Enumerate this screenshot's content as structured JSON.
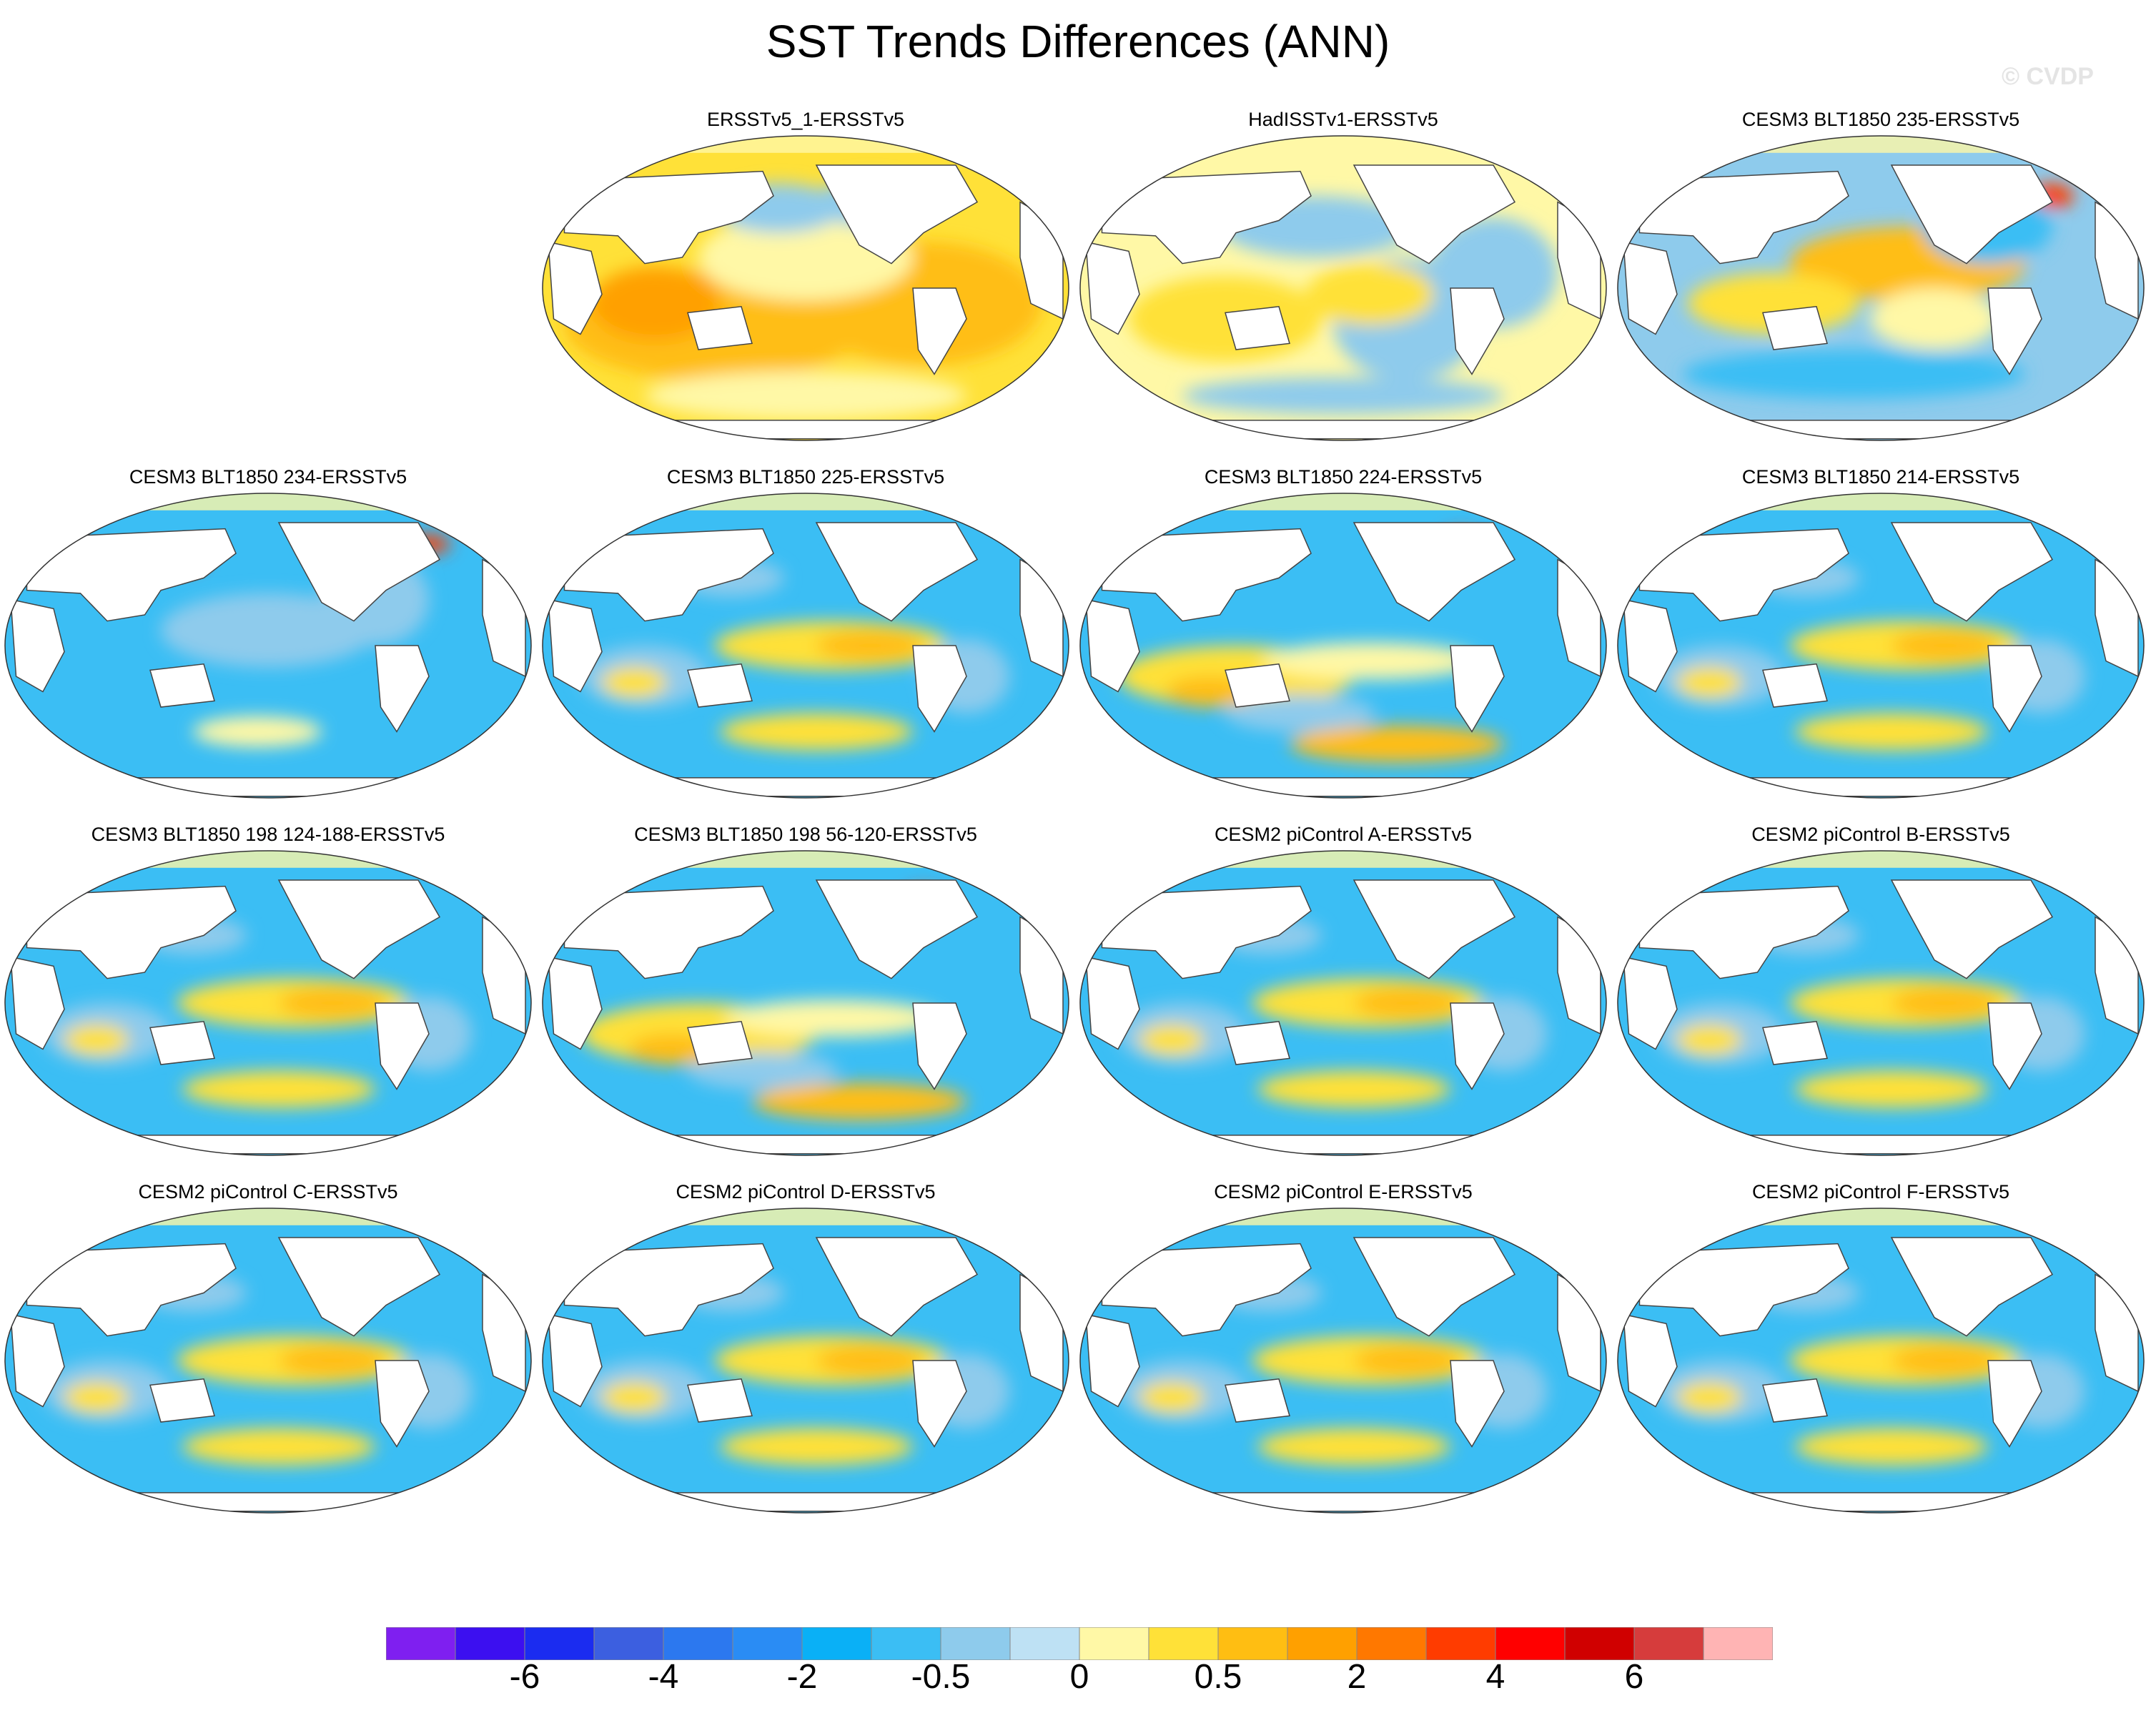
{
  "title": "SST Trends Differences (ANN)",
  "watermark": "© CVDP",
  "panels": [
    {
      "title": "ERSSTv5_1-ERSSTv5",
      "pattern": "warm"
    },
    {
      "title": "HadISSTv1-ERSSTv5",
      "pattern": "mixed"
    },
    {
      "title": "CESM3 BLT1850 235-ERSSTv5",
      "pattern": "warm-pacific"
    },
    {
      "title": "CESM3 BLT1850 234-ERSSTv5",
      "pattern": "cold"
    },
    {
      "title": "CESM3 BLT1850 225-ERSSTv5",
      "pattern": "cold-band"
    },
    {
      "title": "CESM3 BLT1850 224-ERSSTv5",
      "pattern": "cold-south-warm"
    },
    {
      "title": "CESM3 BLT1850 214-ERSSTv5",
      "pattern": "cold-band"
    },
    {
      "title": "CESM3 BLT1850 198 124-188-ERSSTv5",
      "pattern": "cold-band"
    },
    {
      "title": "CESM3 BLT1850 198 56-120-ERSSTv5",
      "pattern": "cold-south-warm"
    },
    {
      "title": "CESM2 piControl A-ERSSTv5",
      "pattern": "cold-band"
    },
    {
      "title": "CESM2 piControl B-ERSSTv5",
      "pattern": "cold-band"
    },
    {
      "title": "CESM2 piControl C-ERSSTv5",
      "pattern": "cold-band"
    },
    {
      "title": "CESM2 piControl D-ERSSTv5",
      "pattern": "cold-band"
    },
    {
      "title": "CESM2 piControl E-ERSSTv5",
      "pattern": "cold-band"
    },
    {
      "title": "CESM2 piControl F-ERSSTv5",
      "pattern": "cold-band"
    }
  ],
  "colorbar": {
    "colors": [
      "#7f1ff0",
      "#3c0ff0",
      "#1b2cf0",
      "#3c5fe0",
      "#2c78ef",
      "#2a8cf4",
      "#0ab0f6",
      "#3bbef4",
      "#8ecbec",
      "#bee1f4",
      "#fff8a6",
      "#ffe138",
      "#ffbe12",
      "#ffa000",
      "#ff7800",
      "#ff3c00",
      "#ff0000",
      "#d00000",
      "#d63c3c",
      "#ffb4b4"
    ],
    "labels": [
      "-6",
      "-4",
      "-2",
      "-0.5",
      "0",
      "0.5",
      "2",
      "4",
      "6"
    ]
  }
}
